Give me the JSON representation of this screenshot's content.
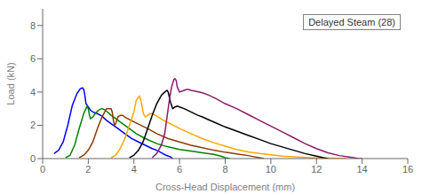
{
  "chart_data": {
    "type": "line",
    "title": "Delayed Steam (28)",
    "xlabel": "Cross-Head Displacement (mm)",
    "ylabel": "Load (kN)",
    "xlim": [
      0,
      16
    ],
    "ylim": [
      0,
      9
    ],
    "xticks": [
      0,
      2,
      4,
      6,
      8,
      10,
      12,
      14,
      16
    ],
    "yticks": [
      0,
      2,
      4,
      6,
      8
    ],
    "grid": false,
    "series": [
      {
        "color": "blue",
        "x": [
          0.5,
          0.7,
          0.9,
          1.1,
          1.3,
          1.5,
          1.65,
          1.75,
          1.8,
          1.85,
          1.9,
          2.0,
          2.1,
          2.2,
          2.4,
          2.6,
          2.8,
          3.0,
          3.3,
          3.6,
          3.9,
          4.2,
          4.5,
          4.8,
          5.0,
          5.2,
          5.4,
          5.6,
          5.7
        ],
        "values": [
          0.3,
          0.5,
          1.0,
          2.0,
          3.2,
          3.9,
          4.2,
          4.25,
          4.15,
          3.8,
          3.3,
          3.1,
          2.9,
          2.8,
          2.7,
          2.55,
          2.3,
          2.1,
          1.8,
          1.5,
          1.2,
          1.0,
          0.8,
          0.6,
          0.5,
          0.35,
          0.2,
          0.1,
          0.0
        ]
      },
      {
        "color": "#008000",
        "x": [
          1.0,
          1.2,
          1.4,
          1.6,
          1.8,
          1.9,
          1.95,
          2.0,
          2.05,
          2.1,
          2.2,
          2.3,
          2.4,
          2.5,
          2.6,
          2.7,
          2.8,
          3.0,
          3.2,
          3.5,
          3.8,
          4.1,
          4.5,
          5.0,
          5.5,
          6.0,
          6.5,
          7.0,
          7.5,
          7.8,
          8.0,
          8.2
        ],
        "values": [
          0.05,
          0.2,
          0.8,
          1.8,
          2.7,
          3.0,
          3.15,
          3.0,
          2.6,
          2.4,
          2.5,
          2.7,
          2.85,
          2.95,
          3.0,
          2.95,
          2.85,
          2.6,
          2.4,
          2.1,
          1.8,
          1.5,
          1.2,
          0.9,
          0.7,
          0.55,
          0.45,
          0.35,
          0.25,
          0.15,
          0.05,
          0.0
        ]
      },
      {
        "color": "#8B3A00",
        "x": [
          1.6,
          1.8,
          2.0,
          2.2,
          2.4,
          2.6,
          2.8,
          3.0,
          3.05,
          3.1,
          3.15,
          3.2,
          3.3,
          3.4,
          3.5,
          3.6,
          3.8,
          4.0,
          4.3,
          4.6,
          5.0,
          5.5,
          6.0,
          6.5,
          7.0,
          7.5,
          8.0,
          8.5,
          9.0,
          9.3,
          9.5,
          9.7
        ],
        "values": [
          0.05,
          0.2,
          0.5,
          1.0,
          1.8,
          2.5,
          3.0,
          3.0,
          2.8,
          2.3,
          2.0,
          2.1,
          2.5,
          2.6,
          2.6,
          2.5,
          2.35,
          2.2,
          2.0,
          1.8,
          1.5,
          1.2,
          1.0,
          0.8,
          0.65,
          0.5,
          0.38,
          0.28,
          0.18,
          0.1,
          0.05,
          0.0
        ]
      },
      {
        "color": "orange",
        "x": [
          3.0,
          3.2,
          3.4,
          3.6,
          3.8,
          4.0,
          4.1,
          4.2,
          4.25,
          4.3,
          4.35,
          4.4,
          4.45,
          4.5,
          4.6,
          4.7,
          4.8,
          5.0,
          5.3,
          5.6,
          6.0,
          6.5,
          7.0,
          7.5,
          8.0,
          8.5,
          9.0,
          9.5,
          10.0,
          10.5,
          11.0,
          11.5,
          12.0,
          12.5,
          13.0,
          13.3
        ],
        "values": [
          0.05,
          0.2,
          0.6,
          1.2,
          2.0,
          2.8,
          3.5,
          3.7,
          3.75,
          3.5,
          3.2,
          2.8,
          2.6,
          2.5,
          2.6,
          2.7,
          2.7,
          2.55,
          2.3,
          2.1,
          1.8,
          1.5,
          1.2,
          0.95,
          0.75,
          0.55,
          0.4,
          0.3,
          0.22,
          0.15,
          0.1,
          0.07,
          0.04,
          0.02,
          0.01,
          0.0
        ]
      },
      {
        "color": "black",
        "x": [
          3.8,
          4.0,
          4.2,
          4.4,
          4.6,
          4.8,
          5.0,
          5.2,
          5.35,
          5.45,
          5.5,
          5.55,
          5.6,
          5.65,
          5.7,
          5.8,
          5.9,
          6.0,
          6.2,
          6.5,
          6.8,
          7.0,
          7.5,
          8.0,
          8.5,
          9.0,
          9.5,
          10.0,
          10.5,
          11.0,
          11.5,
          12.0,
          12.3,
          12.5
        ],
        "values": [
          0.05,
          0.2,
          0.5,
          1.0,
          1.8,
          2.6,
          3.3,
          3.8,
          4.0,
          4.1,
          4.0,
          3.7,
          3.4,
          3.2,
          3.0,
          3.1,
          3.15,
          3.1,
          3.0,
          2.8,
          2.6,
          2.5,
          2.2,
          1.9,
          1.65,
          1.4,
          1.15,
          0.9,
          0.7,
          0.5,
          0.3,
          0.15,
          0.05,
          0.0
        ]
      },
      {
        "color": "#8B1A6B",
        "x": [
          4.8,
          5.0,
          5.2,
          5.35,
          5.45,
          5.55,
          5.65,
          5.75,
          5.8,
          5.85,
          5.9,
          5.95,
          6.0,
          6.1,
          6.2,
          6.3,
          6.4,
          6.5,
          6.7,
          7.0,
          7.3,
          7.6,
          8.0,
          8.5,
          9.0,
          9.5,
          10.0,
          10.5,
          11.0,
          11.5,
          12.0,
          12.5,
          13.0,
          13.5,
          13.8,
          14.0
        ],
        "values": [
          0.05,
          0.3,
          0.8,
          1.5,
          2.5,
          3.5,
          4.3,
          4.75,
          4.8,
          4.7,
          4.3,
          4.15,
          4.0,
          4.05,
          4.1,
          4.15,
          4.15,
          4.1,
          4.05,
          3.95,
          3.8,
          3.6,
          3.3,
          3.0,
          2.65,
          2.3,
          1.95,
          1.6,
          1.25,
          0.9,
          0.6,
          0.35,
          0.18,
          0.08,
          0.02,
          0.0
        ]
      }
    ]
  }
}
